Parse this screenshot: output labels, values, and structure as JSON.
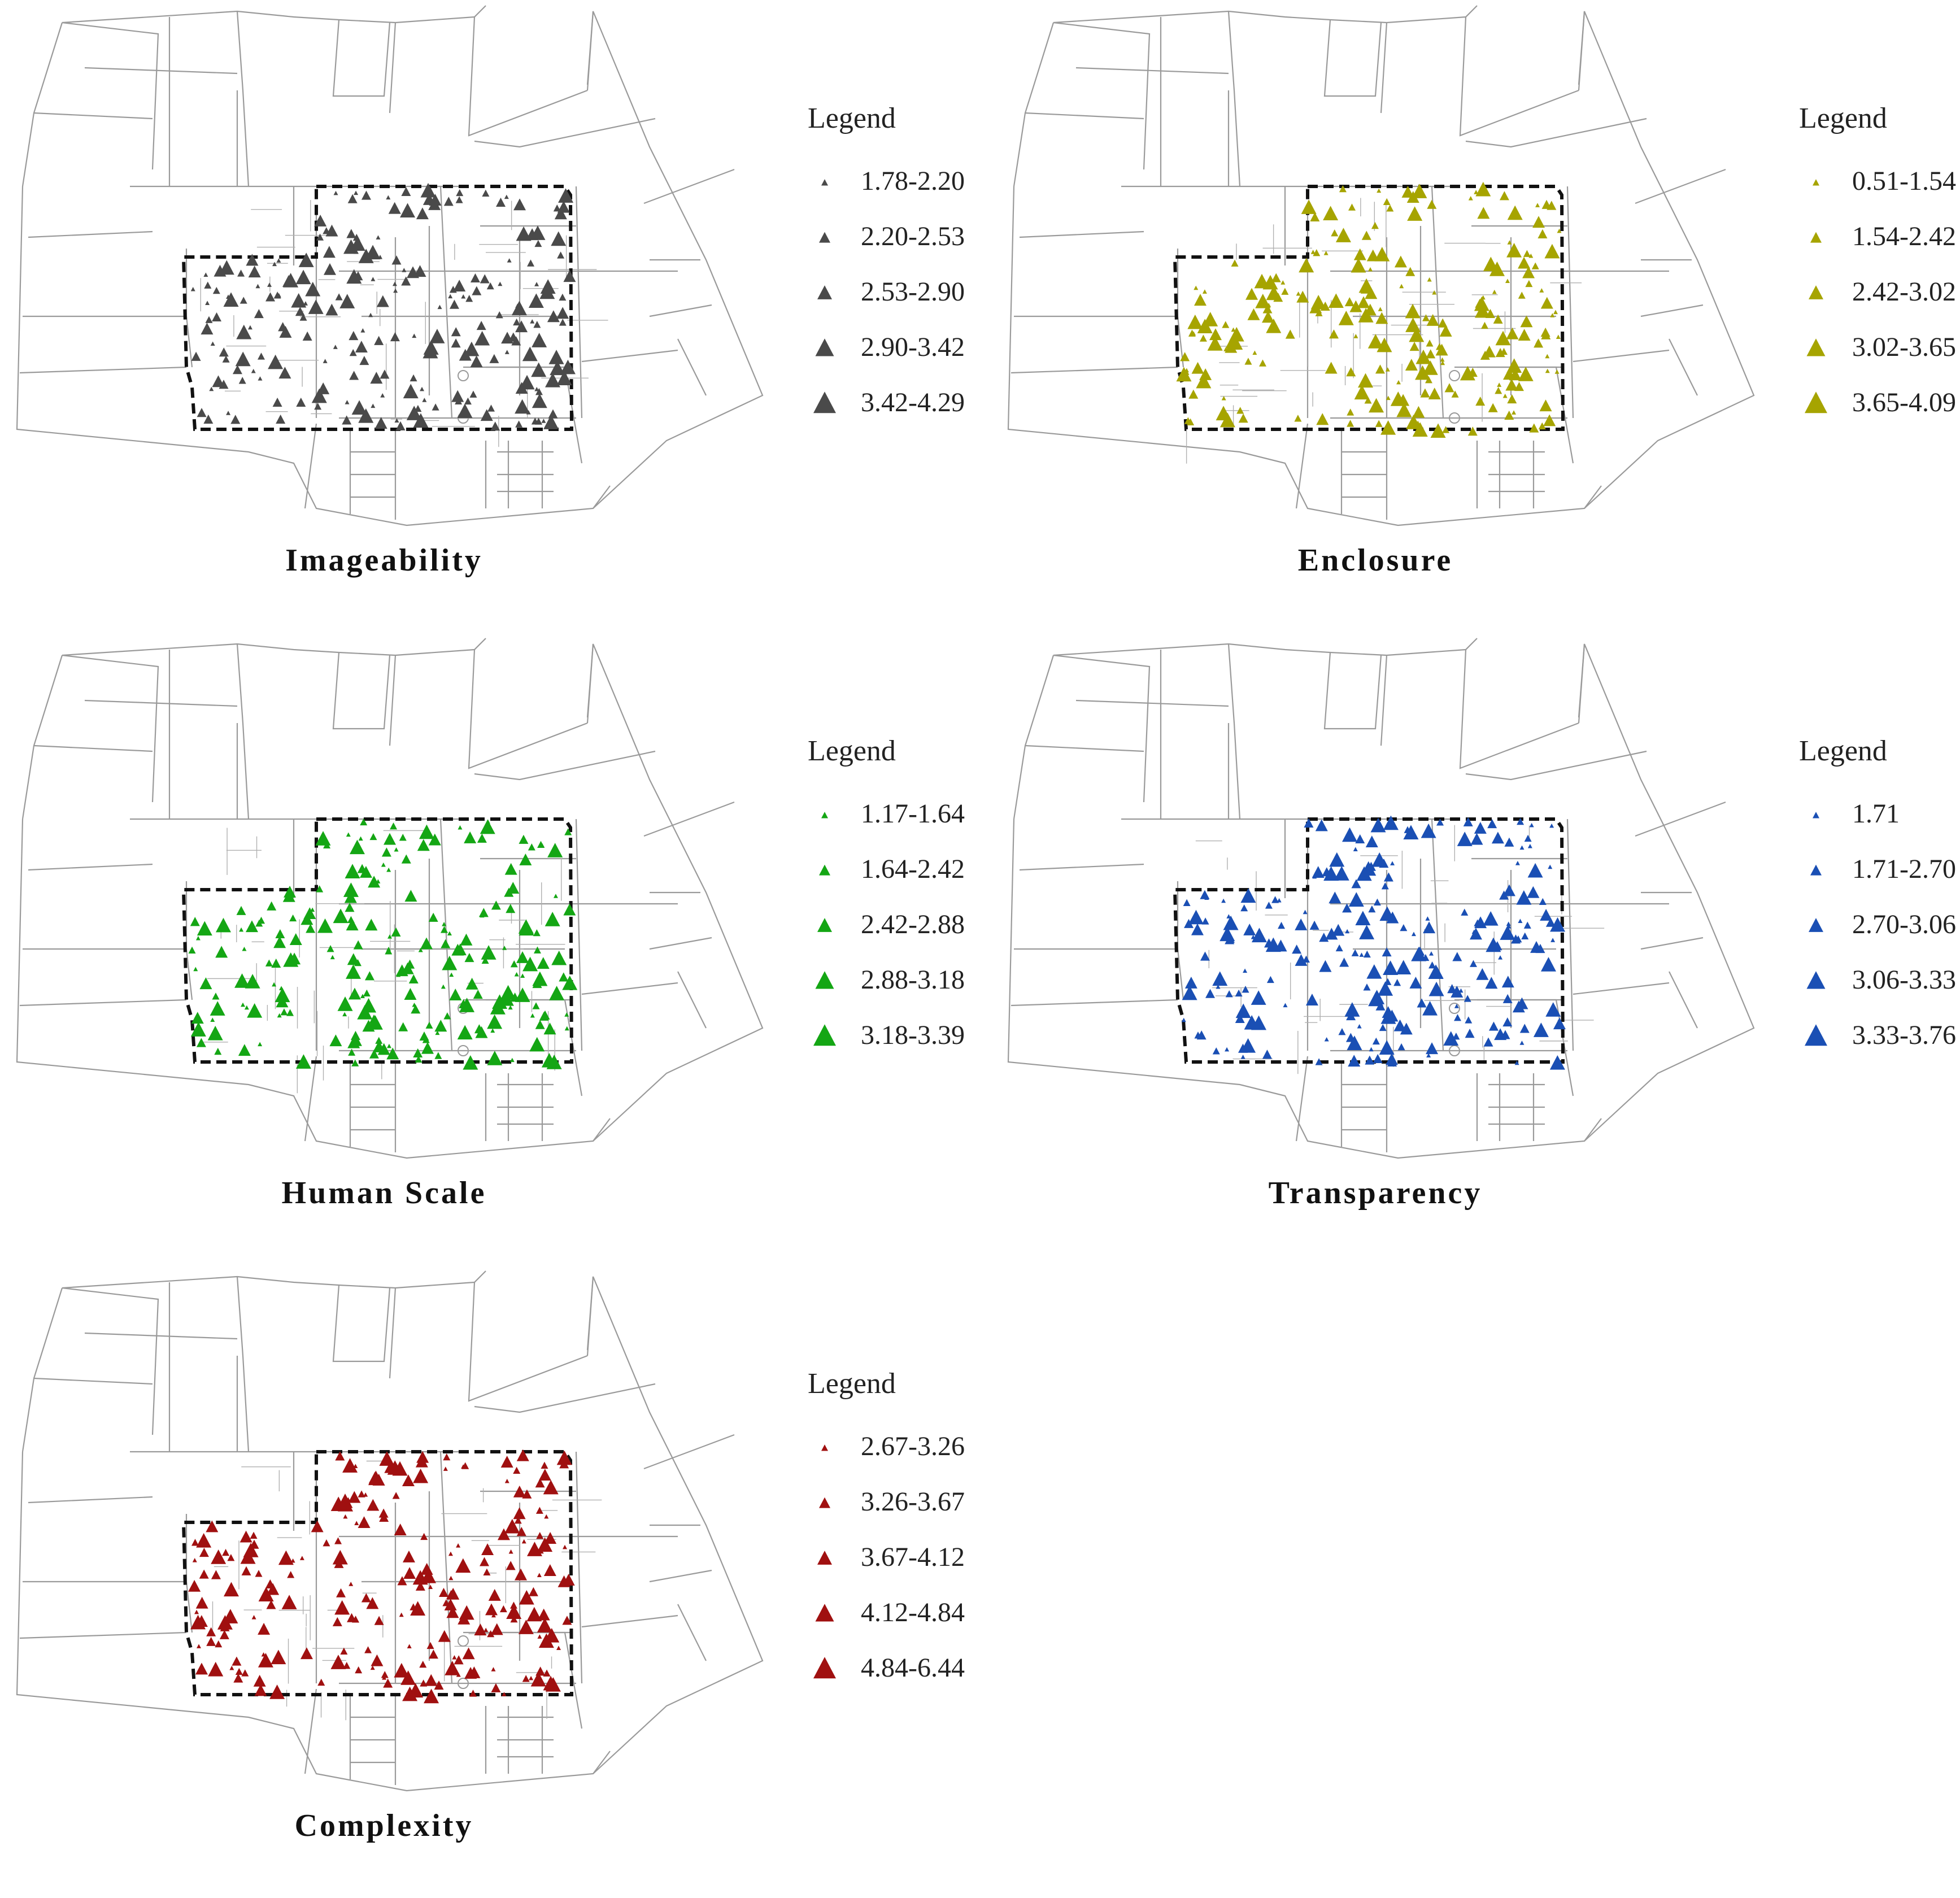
{
  "panels": [
    {
      "title": "Imageability",
      "color": "#4a4a4a",
      "legend_title": "Legend",
      "classes": [
        "1.78-2.20",
        "2.20-2.53",
        "2.53-2.90",
        "2.90-3.42",
        "3.42-4.29"
      ]
    },
    {
      "title": "Enclosure",
      "color": "#a6a400",
      "legend_title": "Legend",
      "classes": [
        "0.51-1.54",
        "1.54-2.42",
        "2.42-3.02",
        "3.02-3.65",
        "3.65-4.09"
      ]
    },
    {
      "title": "Human Scale",
      "color": "#14a614",
      "legend_title": "Legend",
      "classes": [
        "1.17-1.64",
        "1.64-2.42",
        "2.42-2.88",
        "2.88-3.18",
        "3.18-3.39"
      ]
    },
    {
      "title": "Transparency",
      "color": "#1a4fb4",
      "legend_title": "Legend",
      "classes": [
        "1.71",
        "1.71-2.70",
        "2.70-3.06",
        "3.06-3.33",
        "3.33-3.76"
      ]
    },
    {
      "title": "Complexity",
      "color": "#a01010",
      "legend_title": "Legend",
      "classes": [
        "2.67-3.26",
        "3.26-3.67",
        "3.67-4.12",
        "4.12-4.84",
        "4.84-6.44"
      ]
    }
  ]
}
